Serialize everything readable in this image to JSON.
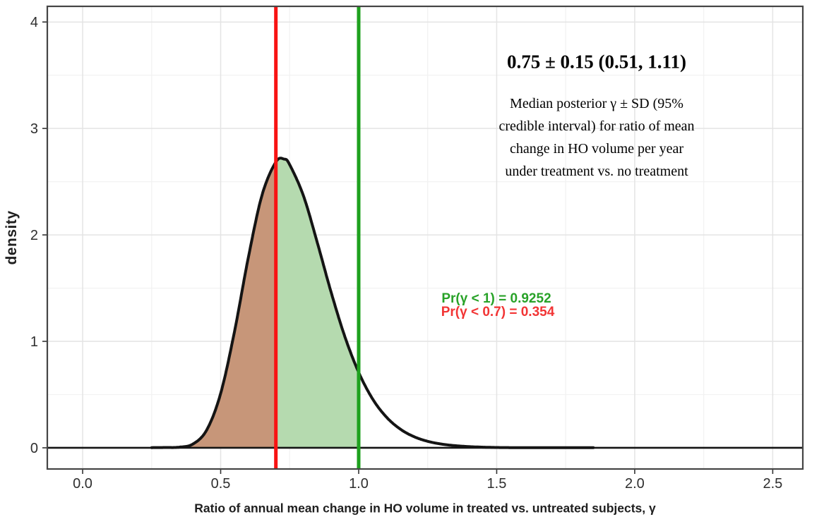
{
  "figure": {
    "stats_annotation": {
      "headline": "0.75 ± 0.15 (0.51, 1.11)",
      "body_lines": [
        "Median posterior γ ± SD (95%",
        "credible interval) for ratio of mean",
        "change in HO volume per year",
        "under treatment vs. no treatment"
      ]
    },
    "probability_annotations": [
      {
        "text": "Pr(γ < 1) = 0.9252",
        "color": "#28a228"
      },
      {
        "text": "Pr(γ < 0.7) = 0.354",
        "color": "#f23535"
      }
    ]
  },
  "chart_data": {
    "type": "area",
    "title": "",
    "xlabel": "Ratio of annual mean change in HO volume in treated vs. untreated subjects, γ",
    "ylabel": "density",
    "xlim": [
      -0.128,
      2.609
    ],
    "ylim": [
      -0.199,
      4.147
    ],
    "x_ticks": [
      0,
      0.5,
      1,
      1.5,
      2,
      2.5
    ],
    "x_tick_labels": [
      "0.0",
      "0.5",
      "1.0",
      "1.5",
      "2.0",
      "2.5"
    ],
    "y_ticks": [
      0,
      1,
      2,
      3,
      4
    ],
    "y_tick_labels": [
      "0",
      "1",
      "2",
      "3",
      "4"
    ],
    "x_minor_ticks": [
      0.25,
      0.75,
      1.25,
      1.75,
      2.25
    ],
    "y_minor_ticks": [
      0.5,
      1.5,
      2.5,
      3.5
    ],
    "grid": true,
    "colors": {
      "curve": "#141414",
      "baseline": "#141414",
      "grid_major": "#e4e4e4",
      "grid_minor": "#f2f2f2",
      "panel_border": "#454545",
      "axis_text": "#2e2e2e"
    },
    "density_curve": {
      "x": [
        0.25,
        0.3,
        0.35,
        0.4,
        0.45,
        0.5,
        0.55,
        0.6,
        0.65,
        0.7,
        0.73,
        0.75,
        0.8,
        0.85,
        0.9,
        0.95,
        1.0,
        1.05,
        1.1,
        1.15,
        1.2,
        1.25,
        1.3,
        1.35,
        1.4,
        1.45,
        1.5,
        1.55,
        1.6,
        1.65,
        1.7,
        1.75,
        1.8,
        1.85
      ],
      "density": [
        0.002,
        0.003,
        0.006,
        0.036,
        0.17,
        0.511,
        1.09,
        1.784,
        2.375,
        2.685,
        2.712,
        2.66,
        2.367,
        1.929,
        1.463,
        1.044,
        0.709,
        0.461,
        0.29,
        0.177,
        0.105,
        0.061,
        0.035,
        0.02,
        0.011,
        0.006,
        0.003,
        0.002,
        0.002,
        0.001,
        0.001,
        0.001,
        0.001,
        0.001
      ]
    },
    "baseline": {
      "y": 0
    },
    "vlines": [
      {
        "name": "red-threshold-line",
        "x": 0.7,
        "color": "#f81313"
      },
      {
        "name": "green-reference-line",
        "x": 1.0,
        "color": "#1ea11e"
      }
    ],
    "shaded_regions": [
      {
        "name": "area-gamma-below-0.7",
        "from": 0.25,
        "to": 0.7,
        "fill": "#c79679"
      },
      {
        "name": "area-gamma-0.7-to-1",
        "from": 0.7,
        "to": 1.0,
        "fill": "#b5daaf"
      }
    ]
  }
}
